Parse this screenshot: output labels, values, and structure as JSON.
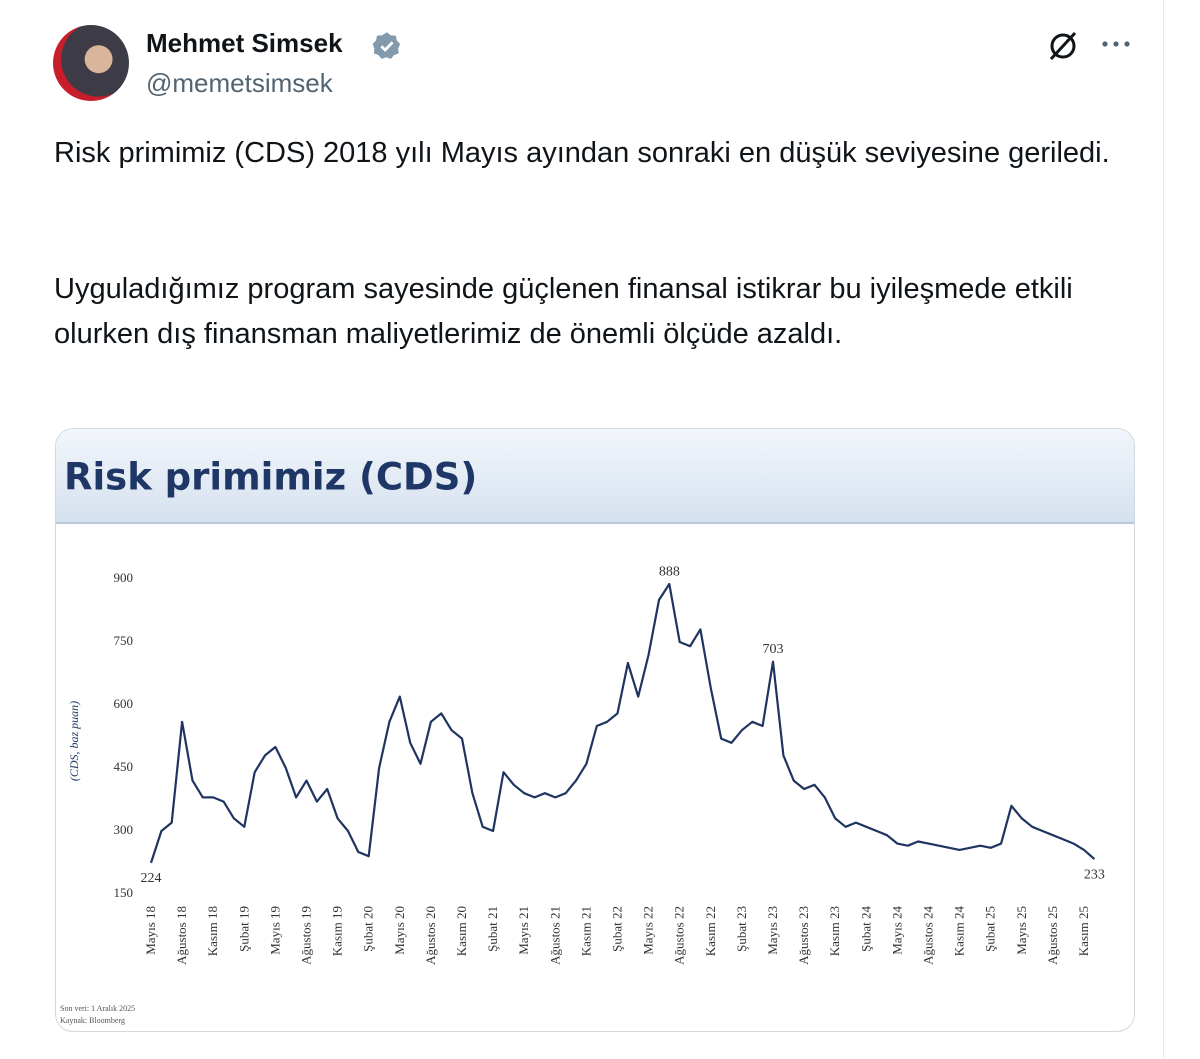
{
  "tweet": {
    "name": "Mehmet Simsek",
    "handle": "@memetsimsek",
    "paragraphs": [
      "Risk primimiz (CDS) 2018 yılı Mayıs ayından sonraki en düşük seviyesine geriledi.",
      "Uyguladığımız program sayesinde güçlenen finansal istikrar bu iyileşmede etkili olurken dış finansman maliyetlerimiz de önemli ölçüde azaldı."
    ]
  },
  "chart_data": {
    "type": "line",
    "title": "Risk primimiz (CDS)",
    "y_label": "(CDS, baz puan)",
    "notes": [
      "Son veri: 1 Aralık 2025",
      "Kaynak: Bloomberg"
    ],
    "categories": [
      "Mayıs 18",
      null,
      null,
      "Ağustos 18",
      null,
      null,
      "Kasım 18",
      null,
      null,
      "Şubat 19",
      null,
      null,
      "Mayıs 19",
      null,
      null,
      "Ağustos 19",
      null,
      null,
      "Kasım 19",
      null,
      null,
      "Şubat 20",
      null,
      null,
      "Mayıs 20",
      null,
      null,
      "Ağustos 20",
      null,
      null,
      "Kasım 20",
      null,
      null,
      "Şubat 21",
      null,
      null,
      "Mayıs 21",
      null,
      null,
      "Ağustos 21",
      null,
      null,
      "Kasım 21",
      null,
      null,
      "Şubat 22",
      null,
      null,
      "Mayıs 22",
      null,
      null,
      "Ağustos 22",
      null,
      null,
      "Kasım 22",
      null,
      null,
      "Şubat 23",
      null,
      null,
      "Mayıs 23",
      null,
      null,
      "Ağustos 23",
      null,
      null,
      "Kasım 23",
      null,
      null,
      "Şubat 24",
      null,
      null,
      "Mayıs 24",
      null,
      null,
      "Ağustos 24",
      null,
      null,
      "Kasım 24",
      null,
      null,
      "Şubat 25",
      null,
      null,
      "Mayıs 25",
      null,
      null,
      "Ağustos 25",
      null,
      null,
      "Kasım 25",
      null
    ],
    "series": [
      {
        "name": "CDS",
        "color": "#1f3460",
        "values": [
          224,
          300,
          320,
          560,
          420,
          380,
          380,
          370,
          330,
          310,
          440,
          480,
          500,
          450,
          380,
          420,
          370,
          400,
          330,
          300,
          250,
          240,
          450,
          560,
          620,
          510,
          460,
          560,
          580,
          540,
          520,
          390,
          310,
          300,
          440,
          410,
          390,
          380,
          390,
          380,
          390,
          420,
          460,
          550,
          560,
          580,
          700,
          620,
          720,
          850,
          888,
          750,
          740,
          780,
          640,
          520,
          510,
          540,
          560,
          550,
          703,
          480,
          420,
          400,
          410,
          380,
          330,
          310,
          320,
          310,
          300,
          290,
          270,
          265,
          275,
          270,
          265,
          260,
          255,
          260,
          265,
          260,
          270,
          360,
          330,
          310,
          300,
          290,
          280,
          270,
          255,
          233
        ]
      }
    ],
    "ylim": [
      150,
      900
    ],
    "yticks": [
      150,
      300,
      450,
      600,
      750,
      900
    ],
    "grid": false
  }
}
